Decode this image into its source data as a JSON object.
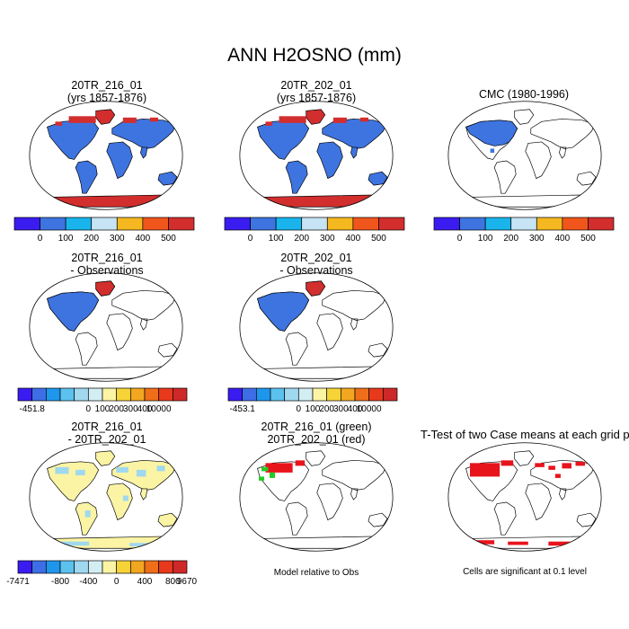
{
  "title": "ANN H2OSNO (mm)",
  "colors": {
    "snow_scale": [
      "#3a1cf0",
      "#3e74e0",
      "#19b4ec",
      "#c6e4f3",
      "#f5b820",
      "#f0561c",
      "#d22e2e"
    ],
    "diff_scale": [
      "#3a1cf0",
      "#3e6ee6",
      "#1e96ec",
      "#5cc1ee",
      "#9fd8ef",
      "#d3eef3",
      "#fbf4a4",
      "#f6d438",
      "#f3a620",
      "#ef6e1a",
      "#e8391c",
      "#cf2828"
    ],
    "land_fill": "#3e74e0",
    "antarctic_fill": "#d22e2e",
    "arctic_fill": "#d22e2e",
    "diff_land_fill": "#fbf4a4",
    "diff_blue_fill": "#9fd8ef",
    "sig_fill": "#e8141c",
    "green": "#22cc22"
  },
  "panels": [
    {
      "title1": "20TR_216_01",
      "title2": "(yrs 1857-1876)"
    },
    {
      "title1": "20TR_202_01",
      "title2": "(yrs 1857-1876)"
    },
    {
      "title1": "CMC (1980-1996)",
      "title2": ""
    },
    {
      "title1": "20TR_216_01",
      "title2": "- Observations"
    },
    {
      "title1": "20TR_202_01",
      "title2": "- Observations"
    },
    {
      "title1": "20TR_216_01",
      "title2": "- 20TR_202_01"
    },
    {
      "title1": "20TR_216_01 (green)",
      "title2": "20TR_202_01 (red)"
    },
    {
      "title1": "T-Test of two Case means at each grid point",
      "title2": ""
    }
  ],
  "notes": {
    "model_relative": "Model relative to Obs",
    "significance": "Cells are significant at 0.1 level"
  },
  "chart_data": [
    {
      "type": "heatmap",
      "title": "20TR_216_01 (yrs 1857-1876)",
      "colorbar_labels": [
        "0",
        "100",
        "200",
        "300",
        "400",
        "500"
      ]
    },
    {
      "type": "heatmap",
      "title": "20TR_202_01 (yrs 1857-1876)",
      "colorbar_labels": [
        "0",
        "100",
        "200",
        "300",
        "400",
        "500"
      ]
    },
    {
      "type": "heatmap",
      "title": "CMC (1980-1996)",
      "colorbar_labels": [
        "0",
        "100",
        "200",
        "300",
        "400",
        "500"
      ]
    },
    {
      "type": "heatmap",
      "title": "20TR_216_01 - Observations",
      "colorbar_labels": [
        "-451.8",
        "0",
        "100",
        "200",
        "300",
        "400",
        "10000"
      ]
    },
    {
      "type": "heatmap",
      "title": "20TR_202_01 - Observations",
      "colorbar_labels": [
        "-453.1",
        "0",
        "100",
        "200",
        "300",
        "400",
        "10000"
      ]
    },
    {
      "type": "heatmap",
      "title": "20TR_216_01 - 20TR_202_01",
      "colorbar_labels": [
        "-7471",
        "-800",
        "-400",
        "0",
        "400",
        "800",
        "9670"
      ]
    }
  ]
}
